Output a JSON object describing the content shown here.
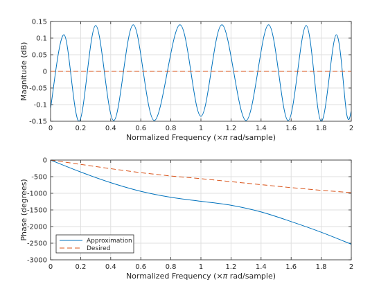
{
  "chart_data": [
    {
      "type": "line",
      "title": "",
      "xlabel": "Normalized Frequency  (×π rad/sample)",
      "ylabel": "Magnitude (dB)",
      "xlim": [
        0,
        2
      ],
      "ylim": [
        -0.15,
        0.15
      ],
      "xticks": [
        "0",
        "0.2",
        "0.4",
        "0.6",
        "0.8",
        "1",
        "1.2",
        "1.4",
        "1.6",
        "1.8",
        "2"
      ],
      "yticks": [
        "-0.15",
        "-0.1",
        "-0.05",
        "0",
        "0.05",
        "0.1",
        "0.15"
      ],
      "grid": true,
      "series": [
        {
          "name": "Approximation",
          "color": "#0072bd",
          "style": "solid",
          "x": [
            0,
            0.09,
            0.19,
            0.3,
            0.42,
            0.55,
            0.69,
            0.86,
            1.0,
            1.14,
            1.3,
            1.45,
            1.58,
            1.7,
            1.8,
            1.9,
            1.97,
            2.0
          ],
          "values": [
            -0.11,
            0.11,
            -0.15,
            0.138,
            -0.148,
            0.14,
            -0.148,
            0.14,
            -0.135,
            0.14,
            -0.148,
            0.14,
            -0.148,
            0.138,
            -0.15,
            0.11,
            -0.13,
            -0.12
          ]
        },
        {
          "name": "Desired",
          "color": "#d95319",
          "style": "dashed",
          "x": [
            0,
            2
          ],
          "values": [
            0,
            0
          ]
        }
      ]
    },
    {
      "type": "line",
      "title": "",
      "xlabel": "Normalized Frequency  (×π rad/sample)",
      "ylabel": "Phase (degrees)",
      "xlim": [
        0,
        2
      ],
      "ylim": [
        -3000,
        0
      ],
      "xticks": [
        "0",
        "0.2",
        "0.4",
        "0.6",
        "0.8",
        "1",
        "1.2",
        "1.4",
        "1.6",
        "1.8",
        "2"
      ],
      "yticks": [
        "-3000",
        "-2500",
        "-2000",
        "-1500",
        "-1000",
        "-500",
        "0"
      ],
      "grid": true,
      "legend": "bottom-left",
      "series": [
        {
          "name": "Approximation",
          "color": "#0072bd",
          "style": "solid",
          "x": [
            0,
            0.2,
            0.4,
            0.6,
            0.8,
            1.0,
            1.2,
            1.4,
            1.6,
            1.8,
            2.0
          ],
          "values": [
            0,
            -360,
            -680,
            -940,
            -1120,
            -1240,
            -1360,
            -1560,
            -1850,
            -2170,
            -2530
          ]
        },
        {
          "name": "Desired",
          "color": "#d95319",
          "style": "dashed",
          "x": [
            0,
            0.2,
            0.4,
            0.6,
            0.8,
            1.0,
            1.2,
            1.4,
            1.6,
            1.8,
            2.0
          ],
          "values": [
            0,
            -130,
            -260,
            -380,
            -480,
            -560,
            -650,
            -740,
            -830,
            -910,
            -980
          ]
        }
      ]
    }
  ]
}
